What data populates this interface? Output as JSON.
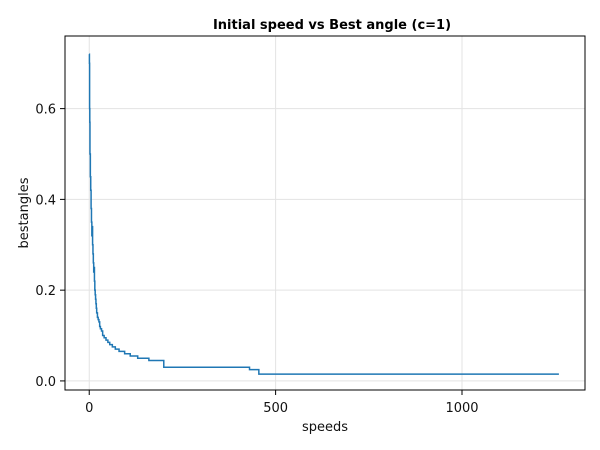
{
  "chart_data": {
    "type": "line",
    "title": "Initial speed vs Best angle (c=1)",
    "xlabel": "speeds",
    "ylabel": "bestangles",
    "xlim": [
      -65,
      1330
    ],
    "ylim": [
      -0.02,
      0.76
    ],
    "xticks": [
      0,
      500,
      1000
    ],
    "xtick_labels": [
      "0",
      "500",
      "1000"
    ],
    "yticks": [
      0.0,
      0.2,
      0.4,
      0.6
    ],
    "ytick_labels": [
      "0.0",
      "0.2",
      "0.4",
      "0.6"
    ],
    "grid": true,
    "legend": "none",
    "colors": {
      "line": "#1f77b4",
      "grid": "#e3e3e3",
      "frame": "#000000"
    },
    "series": [
      {
        "x": [
          0,
          0.5,
          0.5,
          1,
          1,
          1.5,
          1.5,
          2,
          2,
          3,
          3,
          4,
          4,
          5,
          5,
          6,
          6,
          7,
          7,
          8,
          8,
          9,
          9,
          10,
          10,
          11,
          11,
          12,
          12,
          13,
          13,
          14,
          14,
          15,
          15,
          16,
          16,
          17,
          17,
          18,
          18,
          19,
          19,
          20,
          20,
          22,
          22,
          24,
          24,
          26,
          26,
          28,
          28,
          30,
          30,
          33,
          33,
          36,
          36,
          40,
          40,
          45,
          45,
          50,
          50,
          55,
          55,
          62,
          62,
          70,
          70,
          80,
          80,
          95,
          95,
          110,
          110,
          130,
          130,
          160,
          160,
          200,
          200,
          430,
          430,
          455,
          455,
          1260
        ],
        "y": [
          0.72,
          0.72,
          0.7,
          0.7,
          0.6,
          0.6,
          0.57,
          0.57,
          0.5,
          0.5,
          0.45,
          0.45,
          0.42,
          0.42,
          0.38,
          0.38,
          0.35,
          0.35,
          0.32,
          0.32,
          0.34,
          0.34,
          0.3,
          0.3,
          0.28,
          0.28,
          0.26,
          0.26,
          0.24,
          0.24,
          0.25,
          0.25,
          0.22,
          0.22,
          0.2,
          0.2,
          0.19,
          0.19,
          0.18,
          0.18,
          0.17,
          0.17,
          0.16,
          0.16,
          0.15,
          0.15,
          0.14,
          0.14,
          0.135,
          0.135,
          0.13,
          0.13,
          0.12,
          0.12,
          0.115,
          0.115,
          0.11,
          0.11,
          0.1,
          0.1,
          0.095,
          0.095,
          0.09,
          0.09,
          0.085,
          0.085,
          0.08,
          0.08,
          0.075,
          0.075,
          0.07,
          0.07,
          0.065,
          0.065,
          0.06,
          0.06,
          0.055,
          0.055,
          0.05,
          0.05,
          0.045,
          0.045,
          0.03,
          0.03,
          0.025,
          0.025,
          0.015,
          0.015
        ]
      }
    ]
  }
}
